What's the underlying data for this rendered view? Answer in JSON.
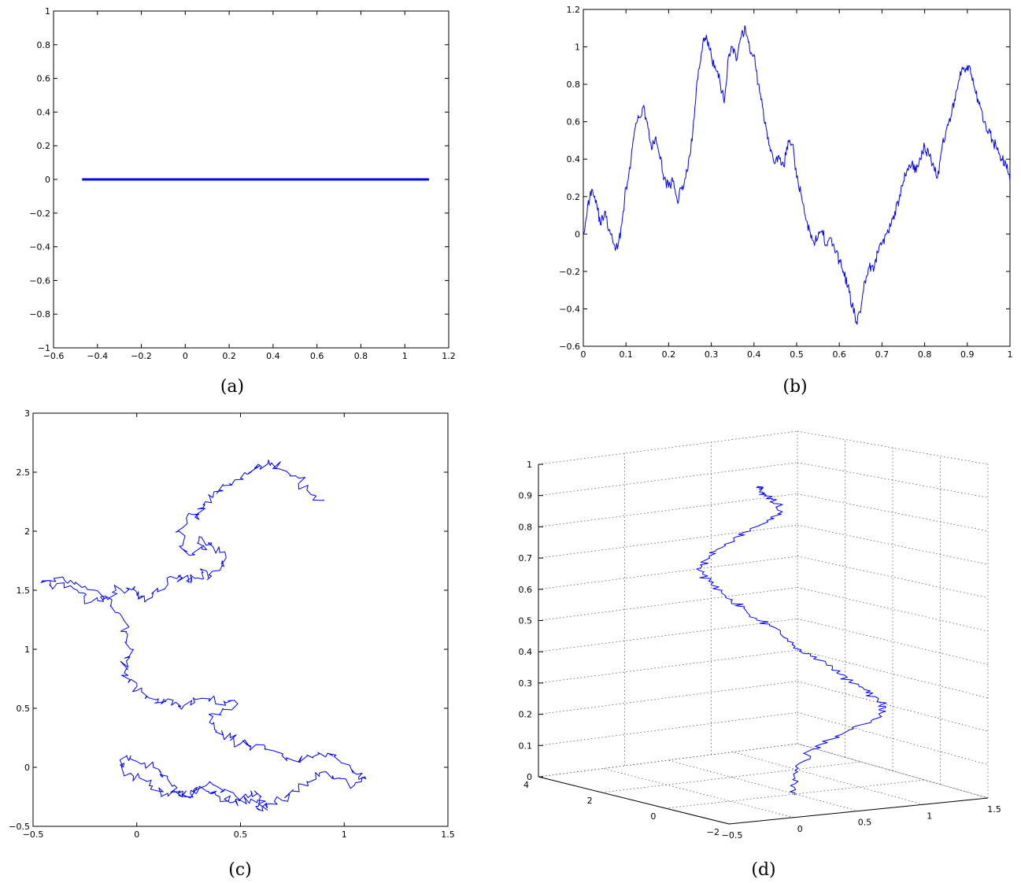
{
  "chart_data": [
    {
      "panel": "(a)",
      "type": "line",
      "xlim": [
        -0.6,
        1.2
      ],
      "ylim": [
        -1,
        1
      ],
      "xticks": [
        "−0.6",
        "−0.4",
        "−0.2",
        "0",
        "0.2",
        "0.4",
        "0.6",
        "0.8",
        "1",
        "1.2"
      ],
      "yticks": [
        "−1",
        "−0.8",
        "−0.6",
        "−0.4",
        "−0.2",
        "0",
        "0.2",
        "0.4",
        "0.6",
        "0.8",
        "1"
      ],
      "x": [
        -0.47,
        1.11
      ],
      "y": [
        0,
        0
      ],
      "grid": false
    },
    {
      "panel": "(b)",
      "type": "line",
      "xlim": [
        0,
        1
      ],
      "ylim": [
        -0.6,
        1.2
      ],
      "xticks": [
        "0",
        "0.1",
        "0.2",
        "0.3",
        "0.4",
        "0.5",
        "0.6",
        "0.7",
        "0.8",
        "0.9",
        "1"
      ],
      "yticks": [
        "−0.6",
        "−0.4",
        "−0.2",
        "0",
        "0.2",
        "0.4",
        "0.6",
        "0.8",
        "1",
        "1.2"
      ],
      "x": [
        0,
        0.01,
        0.02,
        0.03,
        0.04,
        0.05,
        0.06,
        0.07,
        0.08,
        0.09,
        0.1,
        0.11,
        0.12,
        0.13,
        0.14,
        0.15,
        0.16,
        0.17,
        0.18,
        0.19,
        0.2,
        0.21,
        0.22,
        0.23,
        0.24,
        0.25,
        0.26,
        0.27,
        0.28,
        0.29,
        0.3,
        0.31,
        0.32,
        0.33,
        0.34,
        0.35,
        0.36,
        0.37,
        0.38,
        0.39,
        0.4,
        0.41,
        0.42,
        0.43,
        0.44,
        0.45,
        0.46,
        0.47,
        0.48,
        0.49,
        0.5,
        0.51,
        0.52,
        0.53,
        0.54,
        0.55,
        0.56,
        0.57,
        0.58,
        0.59,
        0.6,
        0.61,
        0.62,
        0.63,
        0.64,
        0.65,
        0.66,
        0.67,
        0.68,
        0.69,
        0.7,
        0.71,
        0.72,
        0.73,
        0.74,
        0.75,
        0.76,
        0.77,
        0.78,
        0.79,
        0.8,
        0.81,
        0.82,
        0.83,
        0.84,
        0.85,
        0.86,
        0.87,
        0.88,
        0.89,
        0.9,
        0.91,
        0.92,
        0.93,
        0.94,
        0.95,
        0.96,
        0.97,
        0.98,
        0.99,
        1.0
      ],
      "y": [
        0,
        0.15,
        0.24,
        0.18,
        0.05,
        0.12,
        0.02,
        -0.05,
        -0.08,
        0.05,
        0.25,
        0.35,
        0.55,
        0.62,
        0.68,
        0.6,
        0.45,
        0.52,
        0.4,
        0.3,
        0.25,
        0.28,
        0.18,
        0.24,
        0.3,
        0.42,
        0.62,
        0.88,
        1.02,
        1.04,
        0.95,
        0.88,
        0.82,
        0.7,
        0.95,
        1.0,
        0.93,
        1.05,
        1.1,
        0.98,
        0.96,
        0.8,
        0.68,
        0.55,
        0.45,
        0.38,
        0.4,
        0.36,
        0.5,
        0.48,
        0.3,
        0.22,
        0.1,
        0.02,
        -0.04,
        -0.02,
        0.02,
        -0.06,
        -0.02,
        -0.1,
        -0.14,
        -0.2,
        -0.28,
        -0.38,
        -0.47,
        -0.42,
        -0.25,
        -0.18,
        -0.2,
        -0.1,
        -0.05,
        0.0,
        0.04,
        0.12,
        0.18,
        0.28,
        0.35,
        0.38,
        0.33,
        0.4,
        0.47,
        0.42,
        0.38,
        0.3,
        0.45,
        0.55,
        0.6,
        0.72,
        0.82,
        0.88,
        0.9,
        0.85,
        0.75,
        0.68,
        0.6,
        0.55,
        0.5,
        0.45,
        0.4,
        0.38,
        0.28
      ],
      "grid": false
    },
    {
      "panel": "(c)",
      "type": "line",
      "xlim": [
        -0.5,
        1.5
      ],
      "ylim": [
        -0.5,
        3
      ],
      "xticks": [
        "−0.5",
        "0",
        "0.5",
        "1",
        "1.5"
      ],
      "yticks": [
        "−0.5",
        "0",
        "0.5",
        "1",
        "1.5",
        "2",
        "2.5",
        "3"
      ],
      "x": [
        0.9,
        0.82,
        0.78,
        0.7,
        0.65,
        0.6,
        0.55,
        0.5,
        0.45,
        0.4,
        0.35,
        0.32,
        0.3,
        0.25,
        0.2,
        0.22,
        0.28,
        0.32,
        0.3,
        0.36,
        0.4,
        0.42,
        0.36,
        0.32,
        0.28,
        0.24,
        0.2,
        0.15,
        0.1,
        0.05,
        0.02,
        0.0,
        -0.05,
        -0.1,
        -0.15,
        -0.22,
        -0.28,
        -0.35,
        -0.42,
        -0.45,
        -0.4,
        -0.3,
        -0.2,
        -0.12,
        -0.08,
        -0.05,
        -0.03,
        -0.05,
        -0.06,
        -0.04,
        0.0,
        0.05,
        0.1,
        0.15,
        0.2,
        0.28,
        0.35,
        0.42,
        0.48,
        0.4,
        0.35,
        0.38,
        0.45,
        0.5,
        0.55,
        0.62,
        0.7,
        0.78,
        0.85,
        0.92,
        0.98,
        1.05,
        1.1,
        1.05,
        0.95,
        0.88,
        0.82,
        0.75,
        0.7,
        0.62,
        0.58,
        0.6,
        0.55,
        0.5,
        0.45,
        0.4,
        0.35,
        0.3,
        0.25,
        0.2,
        0.18,
        0.12,
        0.08,
        0.0,
        -0.05,
        -0.08,
        -0.03,
        0.05,
        0.1,
        0.15,
        0.22,
        0.28,
        0.35,
        0.42,
        0.5,
        0.58,
        0.62
      ],
      "y": [
        2.27,
        2.35,
        2.45,
        2.52,
        2.58,
        2.55,
        2.5,
        2.45,
        2.4,
        2.35,
        2.3,
        2.2,
        2.1,
        2.15,
        2.0,
        1.85,
        1.8,
        1.88,
        1.92,
        1.9,
        1.82,
        1.7,
        1.62,
        1.65,
        1.6,
        1.58,
        1.62,
        1.55,
        1.5,
        1.42,
        1.45,
        1.48,
        1.52,
        1.5,
        1.45,
        1.4,
        1.48,
        1.52,
        1.55,
        1.58,
        1.6,
        1.55,
        1.5,
        1.42,
        1.3,
        1.15,
        1.0,
        0.9,
        0.8,
        0.72,
        0.65,
        0.6,
        0.55,
        0.58,
        0.52,
        0.55,
        0.58,
        0.56,
        0.55,
        0.45,
        0.38,
        0.3,
        0.25,
        0.2,
        0.18,
        0.15,
        0.1,
        0.05,
        0.08,
        0.12,
        0.05,
        -0.05,
        -0.08,
        -0.15,
        -0.1,
        -0.05,
        -0.12,
        -0.2,
        -0.28,
        -0.32,
        -0.35,
        -0.25,
        -0.2,
        -0.28,
        -0.3,
        -0.25,
        -0.22,
        -0.18,
        -0.25,
        -0.22,
        -0.15,
        -0.08,
        0.0,
        0.05,
        0.1,
        0.02,
        -0.05,
        -0.12,
        -0.2,
        -0.22,
        -0.25,
        -0.18,
        -0.12,
        -0.2,
        -0.28,
        -0.3,
        -0.35
      ],
      "grid": false
    },
    {
      "panel": "(d)",
      "type": "line",
      "projection": "3d",
      "zlim": [
        0,
        1
      ],
      "zticks": [
        "0",
        "0.1",
        "0.2",
        "0.3",
        "0.4",
        "0.5",
        "0.6",
        "0.7",
        "0.8",
        "0.9",
        "1"
      ],
      "yticks": [
        "4",
        "2",
        "0",
        "−2"
      ],
      "xticks": [
        "−0.5",
        "0",
        "0.5",
        "1",
        "1.5"
      ],
      "x": [
        0.5,
        0.55,
        0.62,
        0.7,
        0.78,
        0.9,
        1.05,
        1.15,
        1.2,
        1.12,
        1.05,
        0.95,
        0.88,
        0.8,
        0.72,
        0.62,
        0.55,
        0.5,
        0.45,
        0.4,
        0.35,
        0.3,
        0.28,
        0.22,
        0.18,
        0.15,
        0.18,
        0.25,
        0.32,
        0.4,
        0.48,
        0.55,
        0.5,
        0.42,
        0.35,
        0.3,
        0.28,
        0.22
      ],
      "y": [
        0.0,
        0.2,
        0.4,
        0.5,
        0.6,
        0.5,
        0.4,
        0.2,
        0.0,
        -0.2,
        -0.3,
        -0.4,
        -0.3,
        -0.2,
        -0.1,
        0.0,
        0.2,
        0.4,
        0.6,
        0.8,
        1.0,
        1.2,
        1.4,
        1.5,
        1.6,
        1.5,
        1.4,
        1.3,
        1.2,
        1.0,
        0.8,
        0.6,
        0.5,
        0.4,
        0.3,
        0.2,
        0.1,
        0.0
      ],
      "z": [
        0.0,
        0.03,
        0.06,
        0.09,
        0.12,
        0.15,
        0.18,
        0.21,
        0.24,
        0.27,
        0.3,
        0.32,
        0.35,
        0.38,
        0.41,
        0.44,
        0.47,
        0.5,
        0.53,
        0.55,
        0.58,
        0.6,
        0.62,
        0.65,
        0.68,
        0.71,
        0.74,
        0.77,
        0.8,
        0.83,
        0.86,
        0.89,
        0.92,
        0.94,
        0.96,
        0.97,
        0.99,
        1.0
      ],
      "grid": true
    }
  ],
  "panel_labels": [
    "(a)",
    "(b)",
    "(c)",
    "(d)"
  ]
}
